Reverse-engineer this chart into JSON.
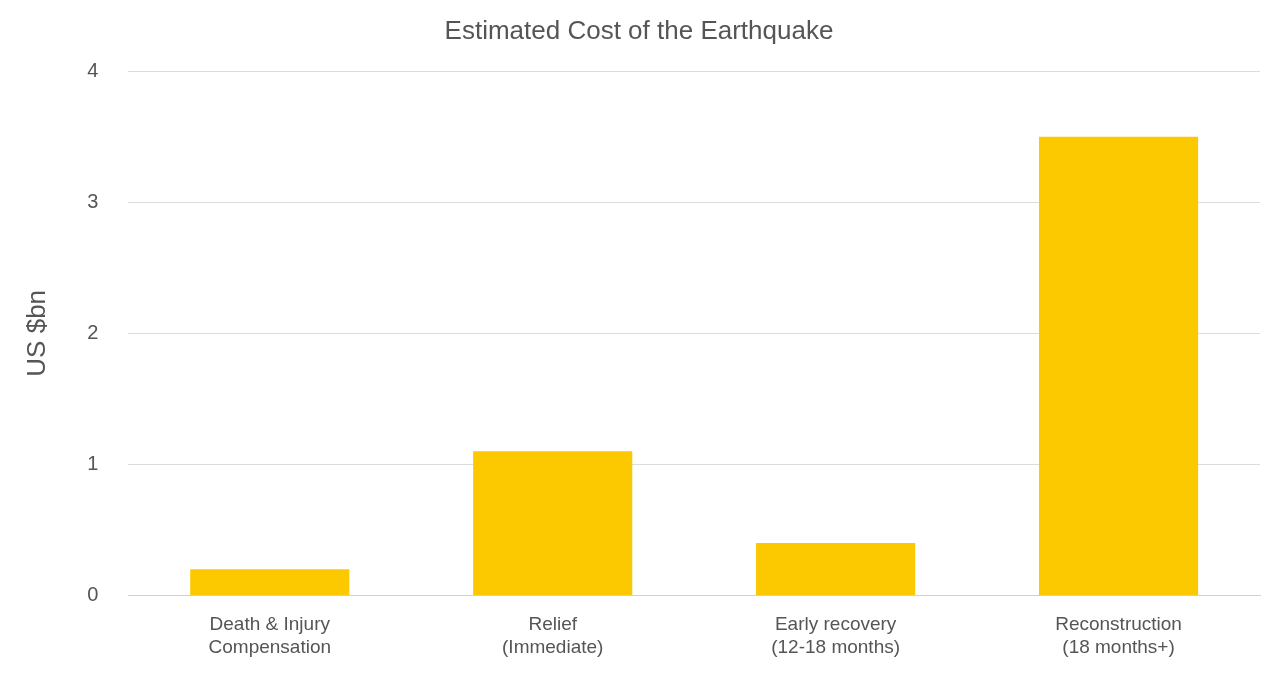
{
  "chart_data": {
    "type": "bar",
    "title": "Estimated Cost of the Earthquake",
    "ylabel": "US $bn",
    "categories": [
      "Death & Injury\nCompensation",
      "Relief\n(Immediate)",
      "Early recovery\n(12-18 months)",
      "Reconstruction\n(18 months+)"
    ],
    "values": [
      0.2,
      1.1,
      0.4,
      3.5
    ],
    "color": "#fcc800",
    "ylim": [
      0,
      4
    ],
    "yticks": [
      0,
      1,
      2,
      3,
      4
    ],
    "grid": "y",
    "legend": false
  }
}
